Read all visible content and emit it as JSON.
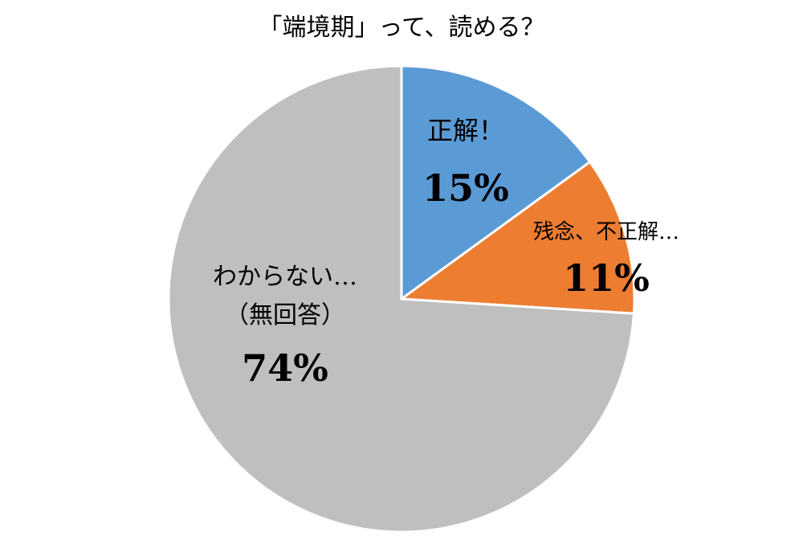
{
  "chart_data": {
    "type": "pie",
    "title": "「端境期」って、読める？",
    "categories": [
      "正解！",
      "残念、不正解…",
      "わからない…\n（無回答）"
    ],
    "values": [
      15,
      11,
      74
    ],
    "value_labels": [
      "15%",
      "11%",
      "74%"
    ],
    "colors": [
      "#5b9bd5",
      "#ed7d31",
      "#bfbfbf"
    ]
  }
}
